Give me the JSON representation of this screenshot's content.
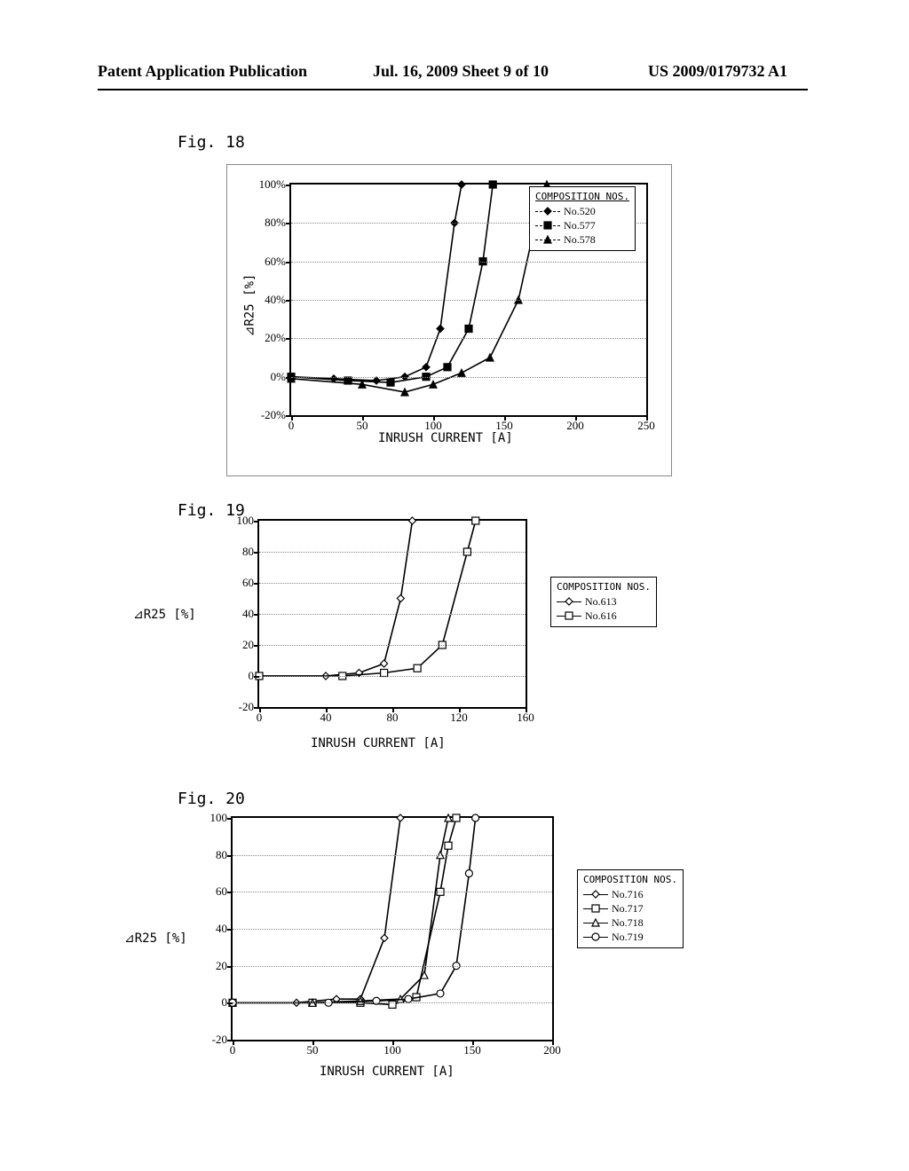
{
  "header": {
    "left": "Patent Application Publication",
    "center": "Jul. 16, 2009  Sheet 9 of 10",
    "right": "US 2009/0179732 A1"
  },
  "fig18": {
    "label": "Fig. 18",
    "type": "line",
    "x_axis_title": "INRUSH CURRENT [A]",
    "y_axis_title": "⊿R25 [%]",
    "legend_title": "COMPOSITION NOS.",
    "xlim": [
      0,
      250
    ],
    "ylim": [
      -20,
      100
    ],
    "xticks": [
      0,
      50,
      100,
      150,
      200,
      250
    ],
    "yticks": [
      "-20%",
      "0%",
      "20%",
      "40%",
      "60%",
      "80%",
      "100%"
    ],
    "ytick_vals": [
      -20,
      0,
      20,
      40,
      60,
      80,
      100
    ],
    "grid_color": "#888888",
    "series": [
      {
        "name": "No.520",
        "marker": "diamond-filled",
        "color": "#000000",
        "points": [
          [
            0,
            0
          ],
          [
            30,
            -1
          ],
          [
            60,
            -2
          ],
          [
            80,
            0
          ],
          [
            95,
            5
          ],
          [
            105,
            25
          ],
          [
            115,
            80
          ],
          [
            120,
            100
          ]
        ]
      },
      {
        "name": "No.577",
        "marker": "square-filled",
        "color": "#000000",
        "points": [
          [
            0,
            0
          ],
          [
            40,
            -2
          ],
          [
            70,
            -3
          ],
          [
            95,
            0
          ],
          [
            110,
            5
          ],
          [
            125,
            25
          ],
          [
            135,
            60
          ],
          [
            142,
            100
          ]
        ]
      },
      {
        "name": "No.578",
        "marker": "triangle-filled",
        "color": "#000000",
        "points": [
          [
            0,
            -1
          ],
          [
            50,
            -4
          ],
          [
            80,
            -8
          ],
          [
            100,
            -4
          ],
          [
            120,
            2
          ],
          [
            140,
            10
          ],
          [
            160,
            40
          ],
          [
            175,
            90
          ],
          [
            180,
            100
          ]
        ]
      }
    ]
  },
  "fig19": {
    "label": "Fig. 19",
    "type": "line",
    "x_axis_title": "INRUSH CURRENT [A]",
    "y_axis_title": "⊿R25 [%]",
    "legend_title": "COMPOSITION NOS.",
    "xlim": [
      0,
      160
    ],
    "ylim": [
      -20,
      100
    ],
    "xticks": [
      0,
      40,
      80,
      120,
      160
    ],
    "yticks": [
      -20,
      0,
      20,
      40,
      60,
      80,
      100
    ],
    "series": [
      {
        "name": "No.613",
        "marker": "diamond-open",
        "color": "#000000",
        "points": [
          [
            0,
            0
          ],
          [
            40,
            0
          ],
          [
            60,
            2
          ],
          [
            75,
            8
          ],
          [
            85,
            50
          ],
          [
            92,
            100
          ]
        ]
      },
      {
        "name": "No.616",
        "marker": "square-open",
        "color": "#000000",
        "points": [
          [
            0,
            0
          ],
          [
            50,
            0
          ],
          [
            75,
            2
          ],
          [
            95,
            5
          ],
          [
            110,
            20
          ],
          [
            125,
            80
          ],
          [
            130,
            100
          ]
        ]
      }
    ]
  },
  "fig20": {
    "label": "Fig. 20",
    "type": "line",
    "x_axis_title": "INRUSH CURRENT [A]",
    "y_axis_title": "⊿R25 [%]",
    "legend_title": "COMPOSITION NOS.",
    "xlim": [
      0,
      200
    ],
    "ylim": [
      -20,
      100
    ],
    "xticks": [
      0,
      50,
      100,
      150,
      200
    ],
    "yticks": [
      -20,
      0,
      20,
      40,
      60,
      80,
      100
    ],
    "series": [
      {
        "name": "No.716",
        "marker": "diamond-open",
        "color": "#000000",
        "points": [
          [
            0,
            0
          ],
          [
            40,
            0
          ],
          [
            65,
            2
          ],
          [
            80,
            2
          ],
          [
            95,
            35
          ],
          [
            105,
            100
          ]
        ]
      },
      {
        "name": "No.717",
        "marker": "square-open",
        "color": "#000000",
        "points": [
          [
            0,
            0
          ],
          [
            50,
            0
          ],
          [
            80,
            0
          ],
          [
            100,
            -1
          ],
          [
            115,
            3
          ],
          [
            130,
            60
          ],
          [
            135,
            85
          ],
          [
            140,
            100
          ]
        ]
      },
      {
        "name": "No.718",
        "marker": "triangle-open",
        "color": "#000000",
        "points": [
          [
            0,
            0
          ],
          [
            50,
            0
          ],
          [
            80,
            1
          ],
          [
            105,
            2
          ],
          [
            120,
            15
          ],
          [
            130,
            80
          ],
          [
            135,
            100
          ]
        ]
      },
      {
        "name": "No.719",
        "marker": "circle-open",
        "color": "#000000",
        "points": [
          [
            0,
            0
          ],
          [
            60,
            0
          ],
          [
            90,
            1
          ],
          [
            110,
            2
          ],
          [
            130,
            5
          ],
          [
            140,
            20
          ],
          [
            148,
            70
          ],
          [
            152,
            100
          ]
        ]
      }
    ]
  }
}
